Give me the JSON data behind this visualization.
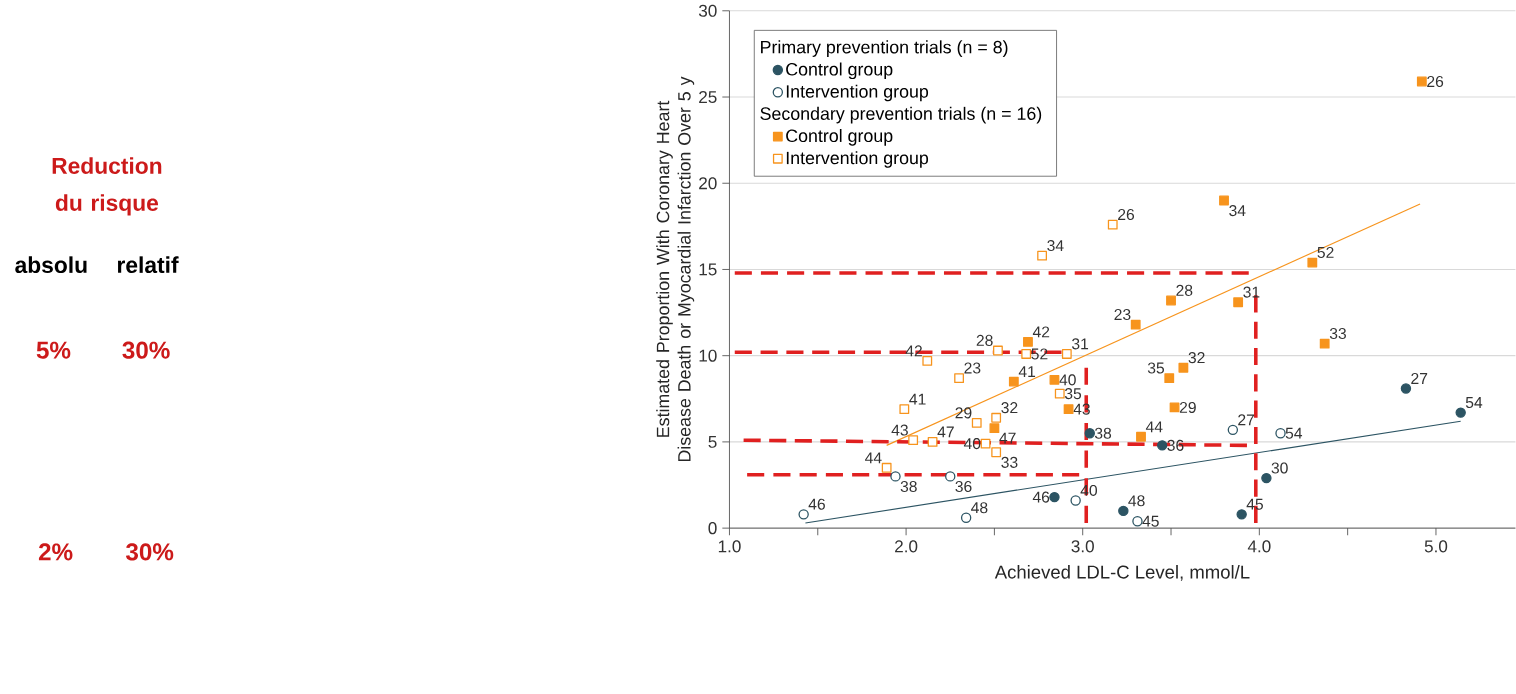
{
  "chart_data": {
    "type": "scatter",
    "xlabel": "Achieved LDL-C Level, mmol/L",
    "ylabel": "Estimated Proportion With Coronary Heart Disease Death or Myocardial Infarction Over 5 y",
    "xlim": [
      1.0,
      5.45
    ],
    "ylim": [
      0,
      30
    ],
    "xticks": [
      {
        "value": 1.0,
        "label": "1.0"
      },
      {
        "value": 1.5,
        "label": null
      },
      {
        "value": 2.0,
        "label": "2.0"
      },
      {
        "value": 2.5,
        "label": null
      },
      {
        "value": 3.0,
        "label": "3.0"
      },
      {
        "value": 3.5,
        "label": null
      },
      {
        "value": 4.0,
        "label": "4.0"
      },
      {
        "value": 4.5,
        "label": null
      },
      {
        "value": 5.0,
        "label": "5.0"
      }
    ],
    "yticks": [
      0,
      5,
      10,
      15,
      20,
      25,
      30
    ],
    "grid": "y",
    "legend": "top left",
    "annotations": [
      "Primary prevention trials (n = 8)",
      "Secondary prevention trials (n = 16)",
      "Reduction du risque",
      "absolu",
      "relatif",
      "5%",
      "30%",
      "2%",
      "30%",
      {
        "text": "38",
        "x": 3.04,
        "y": 5.5
      },
      {
        "text": "46",
        "x": 2.84,
        "y": 1.8
      },
      {
        "text": "48",
        "x": 3.23,
        "y": 1.0
      },
      {
        "text": "36",
        "x": 3.45,
        "y": 4.8
      },
      {
        "text": "45",
        "x": 3.9,
        "y": 0.8
      },
      {
        "text": "30",
        "x": 4.04,
        "y": 2.9
      },
      {
        "text": "27",
        "x": 4.83,
        "y": 8.1
      },
      {
        "text": "54",
        "x": 5.14,
        "y": 6.7
      },
      {
        "text": "46",
        "x": 1.42,
        "y": 0.8
      },
      {
        "text": "38",
        "x": 1.94,
        "y": 3.0
      },
      {
        "text": "48",
        "x": 2.34,
        "y": 0.6
      },
      {
        "text": "36",
        "x": 2.25,
        "y": 3.0
      },
      {
        "text": "40",
        "x": 2.96,
        "y": 1.6
      },
      {
        "text": "45",
        "x": 3.31,
        "y": 0.4
      },
      {
        "text": "27",
        "x": 3.85,
        "y": 5.7
      },
      {
        "text": "54",
        "x": 4.12,
        "y": 5.5
      },
      {
        "text": "26",
        "x": 4.92,
        "y": 25.9
      },
      {
        "text": "34",
        "x": 3.8,
        "y": 19.0
      },
      {
        "text": "52",
        "x": 4.3,
        "y": 15.4
      },
      {
        "text": "28",
        "x": 3.5,
        "y": 13.2
      },
      {
        "text": "31",
        "x": 3.88,
        "y": 13.1
      },
      {
        "text": "23",
        "x": 3.3,
        "y": 11.8
      },
      {
        "text": "33",
        "x": 4.37,
        "y": 10.7
      },
      {
        "text": "42",
        "x": 2.69,
        "y": 10.8
      },
      {
        "text": "41",
        "x": 2.61,
        "y": 8.5
      },
      {
        "text": "40",
        "x": 2.84,
        "y": 8.6
      },
      {
        "text": "43",
        "x": 2.92,
        "y": 6.9
      },
      {
        "text": "35",
        "x": 3.49,
        "y": 8.7
      },
      {
        "text": "32",
        "x": 3.57,
        "y": 9.3
      },
      {
        "text": "29",
        "x": 3.52,
        "y": 7.0
      },
      {
        "text": "44",
        "x": 3.33,
        "y": 5.3
      },
      {
        "text": "47",
        "x": 2.5,
        "y": 5.8
      },
      {
        "text": "26",
        "x": 3.17,
        "y": 17.6
      },
      {
        "text": "34",
        "x": 2.77,
        "y": 15.8
      },
      {
        "text": "28",
        "x": 2.52,
        "y": 10.3
      },
      {
        "text": "52",
        "x": 2.68,
        "y": 10.1
      },
      {
        "text": "31",
        "x": 2.91,
        "y": 10.1
      },
      {
        "text": "42",
        "x": 2.12,
        "y": 9.7
      },
      {
        "text": "23",
        "x": 2.3,
        "y": 8.7
      },
      {
        "text": "41",
        "x": 1.99,
        "y": 6.9
      },
      {
        "text": "35",
        "x": 2.87,
        "y": 7.8
      },
      {
        "text": "29",
        "x": 2.4,
        "y": 6.1
      },
      {
        "text": "32",
        "x": 2.51,
        "y": 6.4
      },
      {
        "text": "43",
        "x": 2.04,
        "y": 5.1
      },
      {
        "text": "47",
        "x": 2.15,
        "y": 5.0
      },
      {
        "text": "40",
        "x": 2.45,
        "y": 4.9
      },
      {
        "text": "33",
        "x": 2.51,
        "y": 4.4
      },
      {
        "text": "44",
        "x": 1.89,
        "y": 3.5
      }
    ],
    "series": [
      {
        "name": "Control group",
        "marker": "circle",
        "color": "#2c5463",
        "x": [
          3.04,
          2.84,
          3.23,
          3.45,
          3.9,
          4.04,
          4.83,
          5.14
        ],
        "values": [
          5.5,
          1.8,
          1.0,
          4.8,
          0.8,
          2.9,
          8.1,
          6.7
        ]
      },
      {
        "name": "Intervention group",
        "marker": "circle-open",
        "color": "#2c5463",
        "x": [
          1.42,
          1.94,
          2.34,
          2.25,
          2.96,
          3.31,
          3.85,
          4.12
        ],
        "values": [
          0.8,
          3.0,
          0.6,
          3.0,
          1.6,
          0.4,
          5.7,
          5.5
        ]
      },
      {
        "name": "Control group",
        "marker": "square",
        "color": "#f7941d",
        "x": [
          4.92,
          3.8,
          4.3,
          3.5,
          3.88,
          3.3,
          4.37,
          2.69,
          2.61,
          2.84,
          2.92,
          3.49,
          3.57,
          3.52,
          3.33,
          2.5
        ],
        "values": [
          25.9,
          19.0,
          15.4,
          13.2,
          13.1,
          11.8,
          10.7,
          10.8,
          8.5,
          8.6,
          6.9,
          8.7,
          9.3,
          7.0,
          5.3,
          5.8
        ]
      },
      {
        "name": "Intervention group",
        "marker": "square-open",
        "color": "#f7941d",
        "x": [
          3.17,
          2.77,
          2.52,
          2.68,
          2.91,
          2.12,
          2.3,
          1.99,
          2.87,
          2.4,
          2.51,
          2.04,
          2.15,
          2.45,
          2.51,
          1.89
        ],
        "values": [
          17.6,
          15.8,
          10.3,
          10.1,
          10.1,
          9.7,
          8.7,
          6.9,
          7.8,
          6.1,
          6.4,
          5.1,
          5.0,
          4.9,
          4.4,
          3.5
        ]
      },
      {
        "type": "line",
        "marker": "none",
        "line_style": "solid",
        "color": "#f7941d",
        "x": [
          1.89,
          4.91
        ],
        "values": [
          4.8,
          18.8
        ]
      },
      {
        "type": "line",
        "marker": "none",
        "line_style": "solid",
        "color": "#2c5463",
        "x": [
          1.43,
          5.14
        ],
        "values": [
          0.3,
          6.2
        ]
      },
      {
        "type": "line",
        "marker": "none",
        "line_style": "dashed",
        "color": "#e02020",
        "x": [
          1.03,
          3.94
        ],
        "values": [
          14.8,
          14.8
        ]
      },
      {
        "type": "line",
        "marker": "none",
        "line_style": "dashed",
        "color": "#e02020",
        "x": [
          1.03,
          2.88
        ],
        "values": [
          10.2,
          10.2
        ]
      },
      {
        "type": "line",
        "marker": "none",
        "line_style": "dashed",
        "color": "#e02020",
        "x": [
          1.08,
          3.93
        ],
        "values": [
          5.1,
          4.8
        ]
      },
      {
        "type": "line",
        "marker": "none",
        "line_style": "dashed",
        "color": "#e02020",
        "x": [
          1.1,
          2.98
        ],
        "values": [
          3.1,
          3.1
        ]
      },
      {
        "type": "line",
        "marker": "none",
        "line_style": "dashed",
        "color": "#e02020",
        "x": [
          3.02,
          3.02
        ],
        "values": [
          9.3,
          0.3
        ]
      },
      {
        "type": "line",
        "marker": "none",
        "line_style": "dashed",
        "color": "#e02020",
        "x": [
          3.98,
          3.98
        ],
        "values": [
          13.5,
          0.3
        ]
      }
    ]
  }
}
